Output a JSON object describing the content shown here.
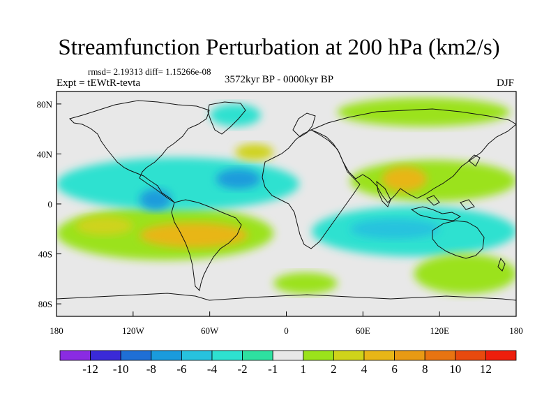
{
  "title": "Streamfunction Perturbation at 200 hPa (km2/s)",
  "stats": {
    "label": "rmsd= 2.19313 diff= 1.15266e-08"
  },
  "left_label": "Expt = tEWtR-tevta",
  "center_label": "3572kyr BP - 0000kyr BP",
  "right_label": "DJF",
  "map": {
    "projection": "cylindrical-equidistant",
    "lon_range": [
      -180,
      180
    ],
    "lat_range": [
      -90,
      90
    ],
    "x_ticks": [
      {
        "value": -180,
        "label": "180"
      },
      {
        "value": -120,
        "label": "120W"
      },
      {
        "value": -60,
        "label": "60W"
      },
      {
        "value": 0,
        "label": "0"
      },
      {
        "value": 60,
        "label": "60E"
      },
      {
        "value": 120,
        "label": "120E"
      },
      {
        "value": 180,
        "label": "180"
      }
    ],
    "y_ticks": [
      {
        "value": 80,
        "label": "80N"
      },
      {
        "value": 40,
        "label": "40N"
      },
      {
        "value": 0,
        "label": "0"
      },
      {
        "value": -40,
        "label": "40S"
      },
      {
        "value": -80,
        "label": "80S"
      }
    ],
    "contour_regions": [
      {
        "name": "positive-band-se-pacific",
        "level": 2,
        "lon": [
          -180,
          -10
        ],
        "lat": [
          -45,
          -2
        ]
      },
      {
        "name": "positive-core-south-america",
        "level": 6,
        "lon": [
          -115,
          -30
        ],
        "lat": [
          -35,
          -15
        ]
      },
      {
        "name": "positive-core-subtropical-pacific",
        "level": 4,
        "lon": [
          -165,
          -120
        ],
        "lat": [
          -25,
          -10
        ]
      },
      {
        "name": "negative-band-atlantic",
        "level": -2,
        "lon": [
          -180,
          10
        ],
        "lat": [
          -5,
          37
        ]
      },
      {
        "name": "negative-core-north-atlantic",
        "level": -6,
        "lon": [
          -55,
          -20
        ],
        "lat": [
          12,
          28
        ]
      },
      {
        "name": "negative-core-east-pacific",
        "level": -6,
        "lon": [
          -115,
          -90
        ],
        "lat": [
          -5,
          12
        ]
      },
      {
        "name": "positive-band-asia",
        "level": 2,
        "lon": [
          50,
          180
        ],
        "lat": [
          2,
          35
        ]
      },
      {
        "name": "positive-core-asia",
        "level": 6,
        "lon": [
          75,
          110
        ],
        "lat": [
          10,
          30
        ]
      },
      {
        "name": "negative-band-indian-ocean",
        "level": -2,
        "lon": [
          20,
          180
        ],
        "lat": [
          -42,
          -2
        ]
      },
      {
        "name": "negative-core-indian-ocean",
        "level": -4,
        "lon": [
          50,
          120
        ],
        "lat": [
          -28,
          -12
        ]
      },
      {
        "name": "positive-band-arctic",
        "level": 2,
        "lon": [
          40,
          175
        ],
        "lat": [
          62,
          85
        ]
      },
      {
        "name": "positive-core-north-atlantic",
        "level": 4,
        "lon": [
          -40,
          -10
        ],
        "lat": [
          35,
          48
        ]
      },
      {
        "name": "negative-core-greenland",
        "level": -2,
        "lon": [
          -60,
          -20
        ],
        "lat": [
          62,
          80
        ]
      },
      {
        "name": "positive-band-southern-ocean",
        "level": 2,
        "lon": [
          100,
          180
        ],
        "lat": [
          -72,
          -40
        ]
      },
      {
        "name": "positive-band-south-atlantic",
        "level": 2,
        "lon": [
          -10,
          40
        ],
        "lat": [
          -72,
          -55
        ]
      }
    ]
  },
  "colorbar": {
    "colors": [
      "#8a2be2",
      "#3a2ad8",
      "#1f6fd6",
      "#1a9bdc",
      "#27c2de",
      "#2ee1d0",
      "#2ee0a0",
      "#e8e8e8",
      "#9be21b",
      "#cfd31a",
      "#e8b617",
      "#e89a14",
      "#e87411",
      "#e84a0e",
      "#ee1e0c"
    ],
    "labels": [
      "-12",
      "-10",
      "-8",
      "-6",
      "-4",
      "-2",
      "-1",
      "1",
      "2",
      "4",
      "6",
      "8",
      "10",
      "12"
    ]
  }
}
